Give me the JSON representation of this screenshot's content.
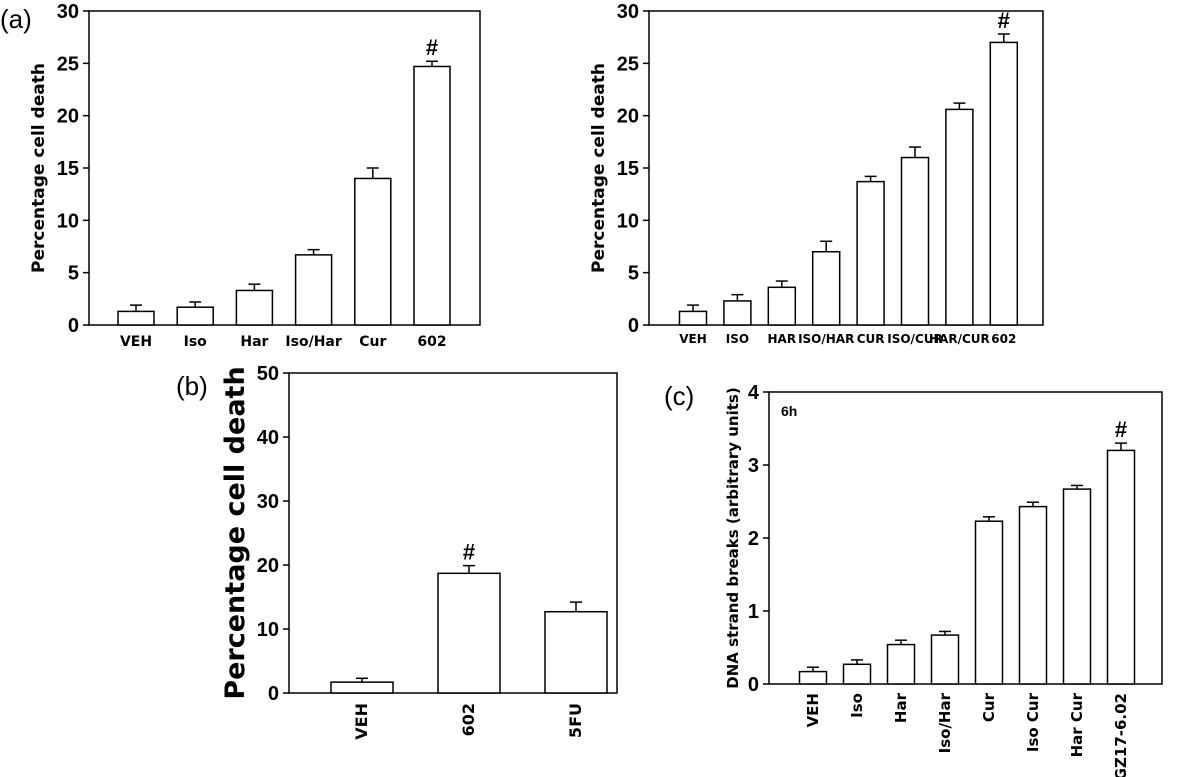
{
  "chart_data": [
    {
      "type": "bar",
      "panel_label": "(a)",
      "ylabel": "Percentage cell death",
      "ylim": [
        0,
        30
      ],
      "yticks": [
        "0",
        "5",
        "10",
        "15",
        "20",
        "25",
        "30"
      ],
      "categories": [
        "VEH",
        "Iso",
        "Har",
        "Iso/Har",
        "Cur",
        "602"
      ],
      "values": [
        1.3,
        1.7,
        3.3,
        6.7,
        14.0,
        24.7
      ],
      "errors": [
        0.6,
        0.5,
        0.6,
        0.5,
        1.0,
        0.5
      ],
      "annotations": [
        "",
        "",
        "",
        "",
        "",
        "#"
      ],
      "bar_fill": "#ffffff",
      "grid": false
    },
    {
      "type": "bar",
      "panel_label": "",
      "ylabel": "Percentage cell death",
      "ylim": [
        0,
        30
      ],
      "yticks": [
        "0",
        "5",
        "10",
        "15",
        "20",
        "25",
        "30"
      ],
      "categories": [
        "VEH",
        "ISO",
        "HAR",
        "ISO/HAR",
        "CUR",
        "ISO/CUR",
        "HAR/CUR",
        "602"
      ],
      "values": [
        1.3,
        2.3,
        3.6,
        7.0,
        13.7,
        16.0,
        20.6,
        27.0
      ],
      "errors": [
        0.6,
        0.6,
        0.6,
        1.0,
        0.5,
        1.0,
        0.6,
        0.8
      ],
      "annotations": [
        "",
        "",
        "",
        "",
        "",
        "",
        "",
        "#"
      ],
      "bar_fill": "#ffffff",
      "grid": false
    },
    {
      "type": "bar",
      "panel_label": "(b)",
      "ylabel": "Percentage cell death",
      "ylim": [
        0,
        50
      ],
      "yticks": [
        "0",
        "10",
        "20",
        "30",
        "40",
        "50"
      ],
      "categories": [
        "VEH",
        "602",
        "5FU"
      ],
      "values": [
        1.7,
        18.7,
        12.7
      ],
      "errors": [
        0.6,
        1.2,
        1.5
      ],
      "annotations": [
        "",
        "#",
        ""
      ],
      "bar_fill": "#ffffff",
      "grid": false
    },
    {
      "type": "bar",
      "panel_label": "(c)",
      "inset_label": "6h",
      "ylabel": "DNA strand breaks (arbitrary units)",
      "ylim": [
        0,
        4
      ],
      "yticks": [
        "0",
        "1",
        "2",
        "3",
        "4"
      ],
      "categories": [
        "VEH",
        "Iso",
        "Har",
        "Iso/Har",
        "Cur",
        "Iso Cur",
        "Har Cur",
        "GZ17-6.02"
      ],
      "values": [
        0.17,
        0.27,
        0.54,
        0.67,
        2.23,
        2.43,
        2.67,
        3.2
      ],
      "errors": [
        0.06,
        0.06,
        0.06,
        0.05,
        0.06,
        0.06,
        0.05,
        0.1
      ],
      "annotations": [
        "",
        "",
        "",
        "",
        "",
        "",
        "",
        "#"
      ],
      "bar_fill": "#ffffff",
      "grid": false
    }
  ]
}
